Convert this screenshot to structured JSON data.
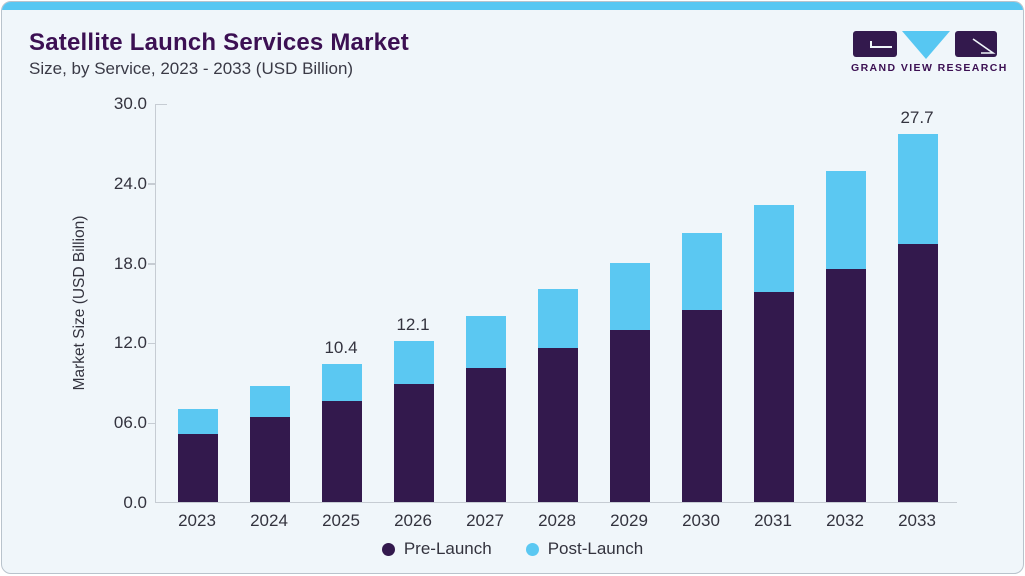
{
  "header": {
    "title": "Satellite Launch Services Market",
    "subtitle": "Size, by Service, 2023 - 2033 (USD Billion)",
    "logo_text": "GRAND VIEW RESEARCH"
  },
  "colors": {
    "pre_launch": "#33194d",
    "post_launch": "#5bc8f2",
    "top_strip": "#57c7f2",
    "card_background": "#f0f6fa",
    "title_text": "#3c1053",
    "body_text": "#33333e",
    "axis_line": "#c6ccd3"
  },
  "chart_data": {
    "type": "bar",
    "stacked": true,
    "title": "Satellite Launch Services Market Size, by Service, 2023 - 2033 (USD Billion)",
    "categories": [
      "2023",
      "2024",
      "2025",
      "2026",
      "2027",
      "2028",
      "2029",
      "2030",
      "2031",
      "2032",
      "2033"
    ],
    "series": [
      {
        "name": "Pre-Launch",
        "color": "#33194d",
        "values": [
          5.1,
          6.4,
          7.6,
          8.9,
          10.1,
          11.6,
          12.9,
          14.4,
          15.8,
          17.5,
          19.4
        ]
      },
      {
        "name": "Post-Launch",
        "color": "#5bc8f2",
        "values": [
          1.9,
          2.3,
          2.8,
          3.2,
          3.9,
          4.4,
          5.1,
          5.8,
          6.5,
          7.4,
          8.3
        ]
      }
    ],
    "value_labels": [
      "",
      "",
      "10.4",
      "12.1",
      "",
      "",
      "",
      "",
      "",
      "",
      "27.7"
    ],
    "xlabel": "",
    "ylabel": "Market Size (USD Billion)",
    "ylim": [
      0,
      30
    ],
    "yticks": [
      {
        "label": "0.0",
        "value": 0
      },
      {
        "label": "06.0",
        "value": 6
      },
      {
        "label": "12.0",
        "value": 12
      },
      {
        "label": "18.0",
        "value": 18
      },
      {
        "label": "24.0",
        "value": 24
      },
      {
        "label": "30.0",
        "value": 30
      }
    ],
    "grid": false,
    "legend": [
      "Pre-Launch",
      "Post-Launch"
    ],
    "legend_position": "bottom"
  }
}
